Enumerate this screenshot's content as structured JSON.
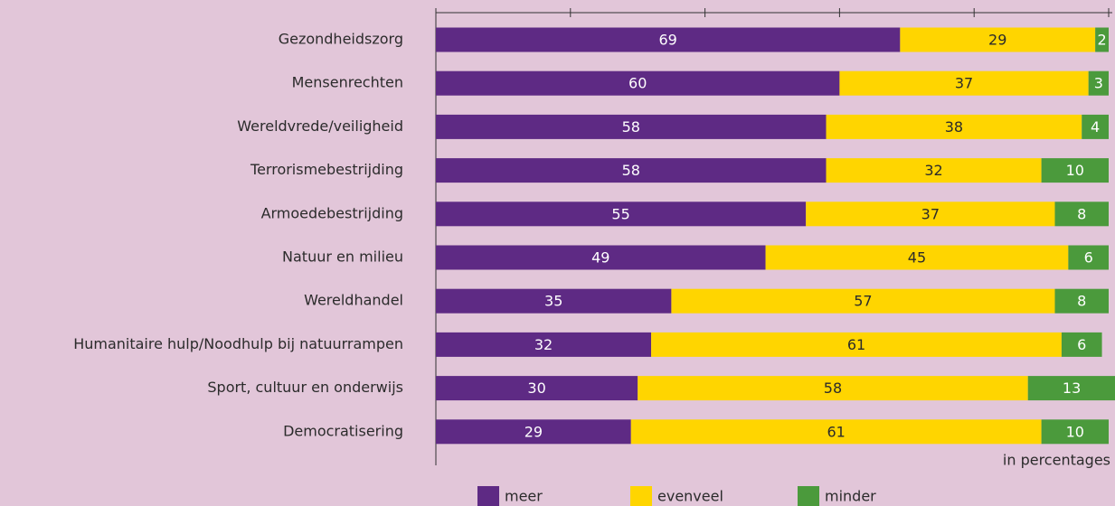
{
  "chart_data": {
    "type": "stacked_barh",
    "categories": [
      "Gezondheidszorg",
      "Mensenrechten",
      "Wereldvrede/veiligheid",
      "Terrorismebestrijding",
      "Armoedebestrijding",
      "Natuur en milieu",
      "Wereldhandel",
      "Humanitaire hulp/Noodhulp bij natuurrampen",
      "Sport, cultuur en onderwijs",
      "Democratisering"
    ],
    "series": [
      {
        "name": "meer",
        "color": "#5e2a84",
        "values": [
          69,
          60,
          58,
          58,
          55,
          49,
          35,
          32,
          30,
          29
        ]
      },
      {
        "name": "evenveel",
        "color": "#ffd500",
        "values": [
          29,
          37,
          38,
          32,
          37,
          45,
          57,
          61,
          58,
          61
        ]
      },
      {
        "name": "minder",
        "color": "#4b9a3c",
        "values": [
          2,
          3,
          4,
          10,
          8,
          6,
          8,
          6,
          13,
          10
        ]
      }
    ],
    "xlim": [
      0,
      100
    ],
    "xticks": [
      0,
      20,
      40,
      60,
      80,
      100
    ],
    "note": "in percentages"
  }
}
